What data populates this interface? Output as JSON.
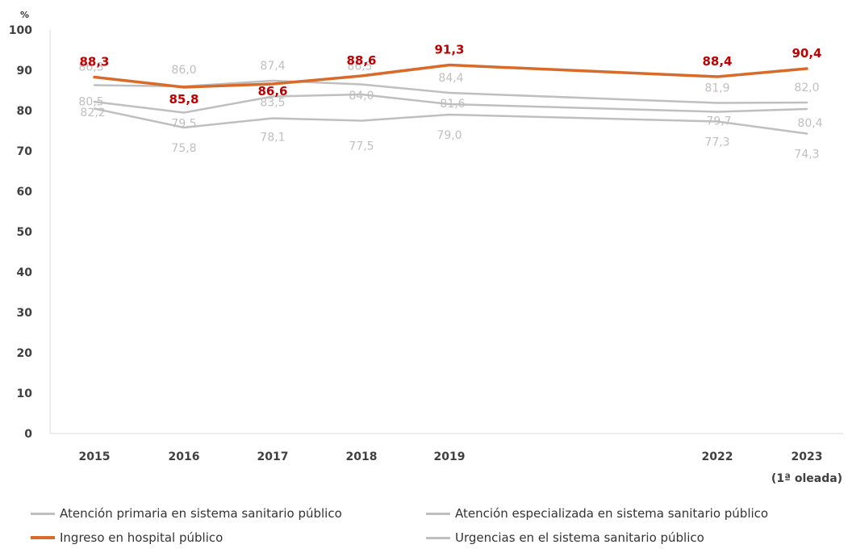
{
  "chart_data": {
    "type": "line",
    "ylabel": "%",
    "ylim": [
      0,
      100
    ],
    "yticks": [
      "0",
      "10",
      "20",
      "30",
      "40",
      "50",
      "60",
      "70",
      "80",
      "90",
      "100"
    ],
    "categories": [
      "2015",
      "2016",
      "2017",
      "2018",
      "2019",
      "2022",
      "2023"
    ],
    "category_sublabels": [
      "",
      "",
      "",
      "",
      "",
      "",
      "(1ª oleada)"
    ],
    "grid": false,
    "legend_position": "bottom",
    "series": [
      {
        "name": "Atención primaria en sistema sanitario público",
        "color": "#bfbfbf",
        "values": [
          86.3,
          86.0,
          87.4,
          86.5,
          84.4,
          81.9,
          82.0
        ],
        "labels": [
          "86,3",
          "86,0",
          "87,4",
          "86,5",
          "84,4",
          "81,9",
          "82,0"
        ]
      },
      {
        "name": "Atención especializada en sistema sanitario público",
        "color": "#bfbfbf",
        "values": [
          82.2,
          79.5,
          83.5,
          84.0,
          81.6,
          79.7,
          80.4
        ],
        "labels": [
          "82,2",
          "79,5",
          "83,5",
          "84,0",
          "81,6",
          "79,7",
          "80,4"
        ]
      },
      {
        "name": "Ingreso en hospital público",
        "color": "#d86a2a",
        "label_color": "#c00000",
        "values": [
          88.3,
          85.8,
          86.6,
          88.6,
          91.3,
          88.4,
          90.4
        ],
        "labels": [
          "88,3",
          "85,8",
          "86,6",
          "88,6",
          "91,3",
          "88,4",
          "90,4"
        ]
      },
      {
        "name": "Urgencias en el sistema sanitario público",
        "color": "#bfbfbf",
        "values": [
          80.5,
          75.8,
          78.1,
          77.5,
          79.0,
          77.3,
          74.3
        ],
        "labels": [
          "80,5",
          "75,8",
          "78,1",
          "77,5",
          "79,0",
          "77,3",
          "74,3"
        ]
      }
    ]
  }
}
